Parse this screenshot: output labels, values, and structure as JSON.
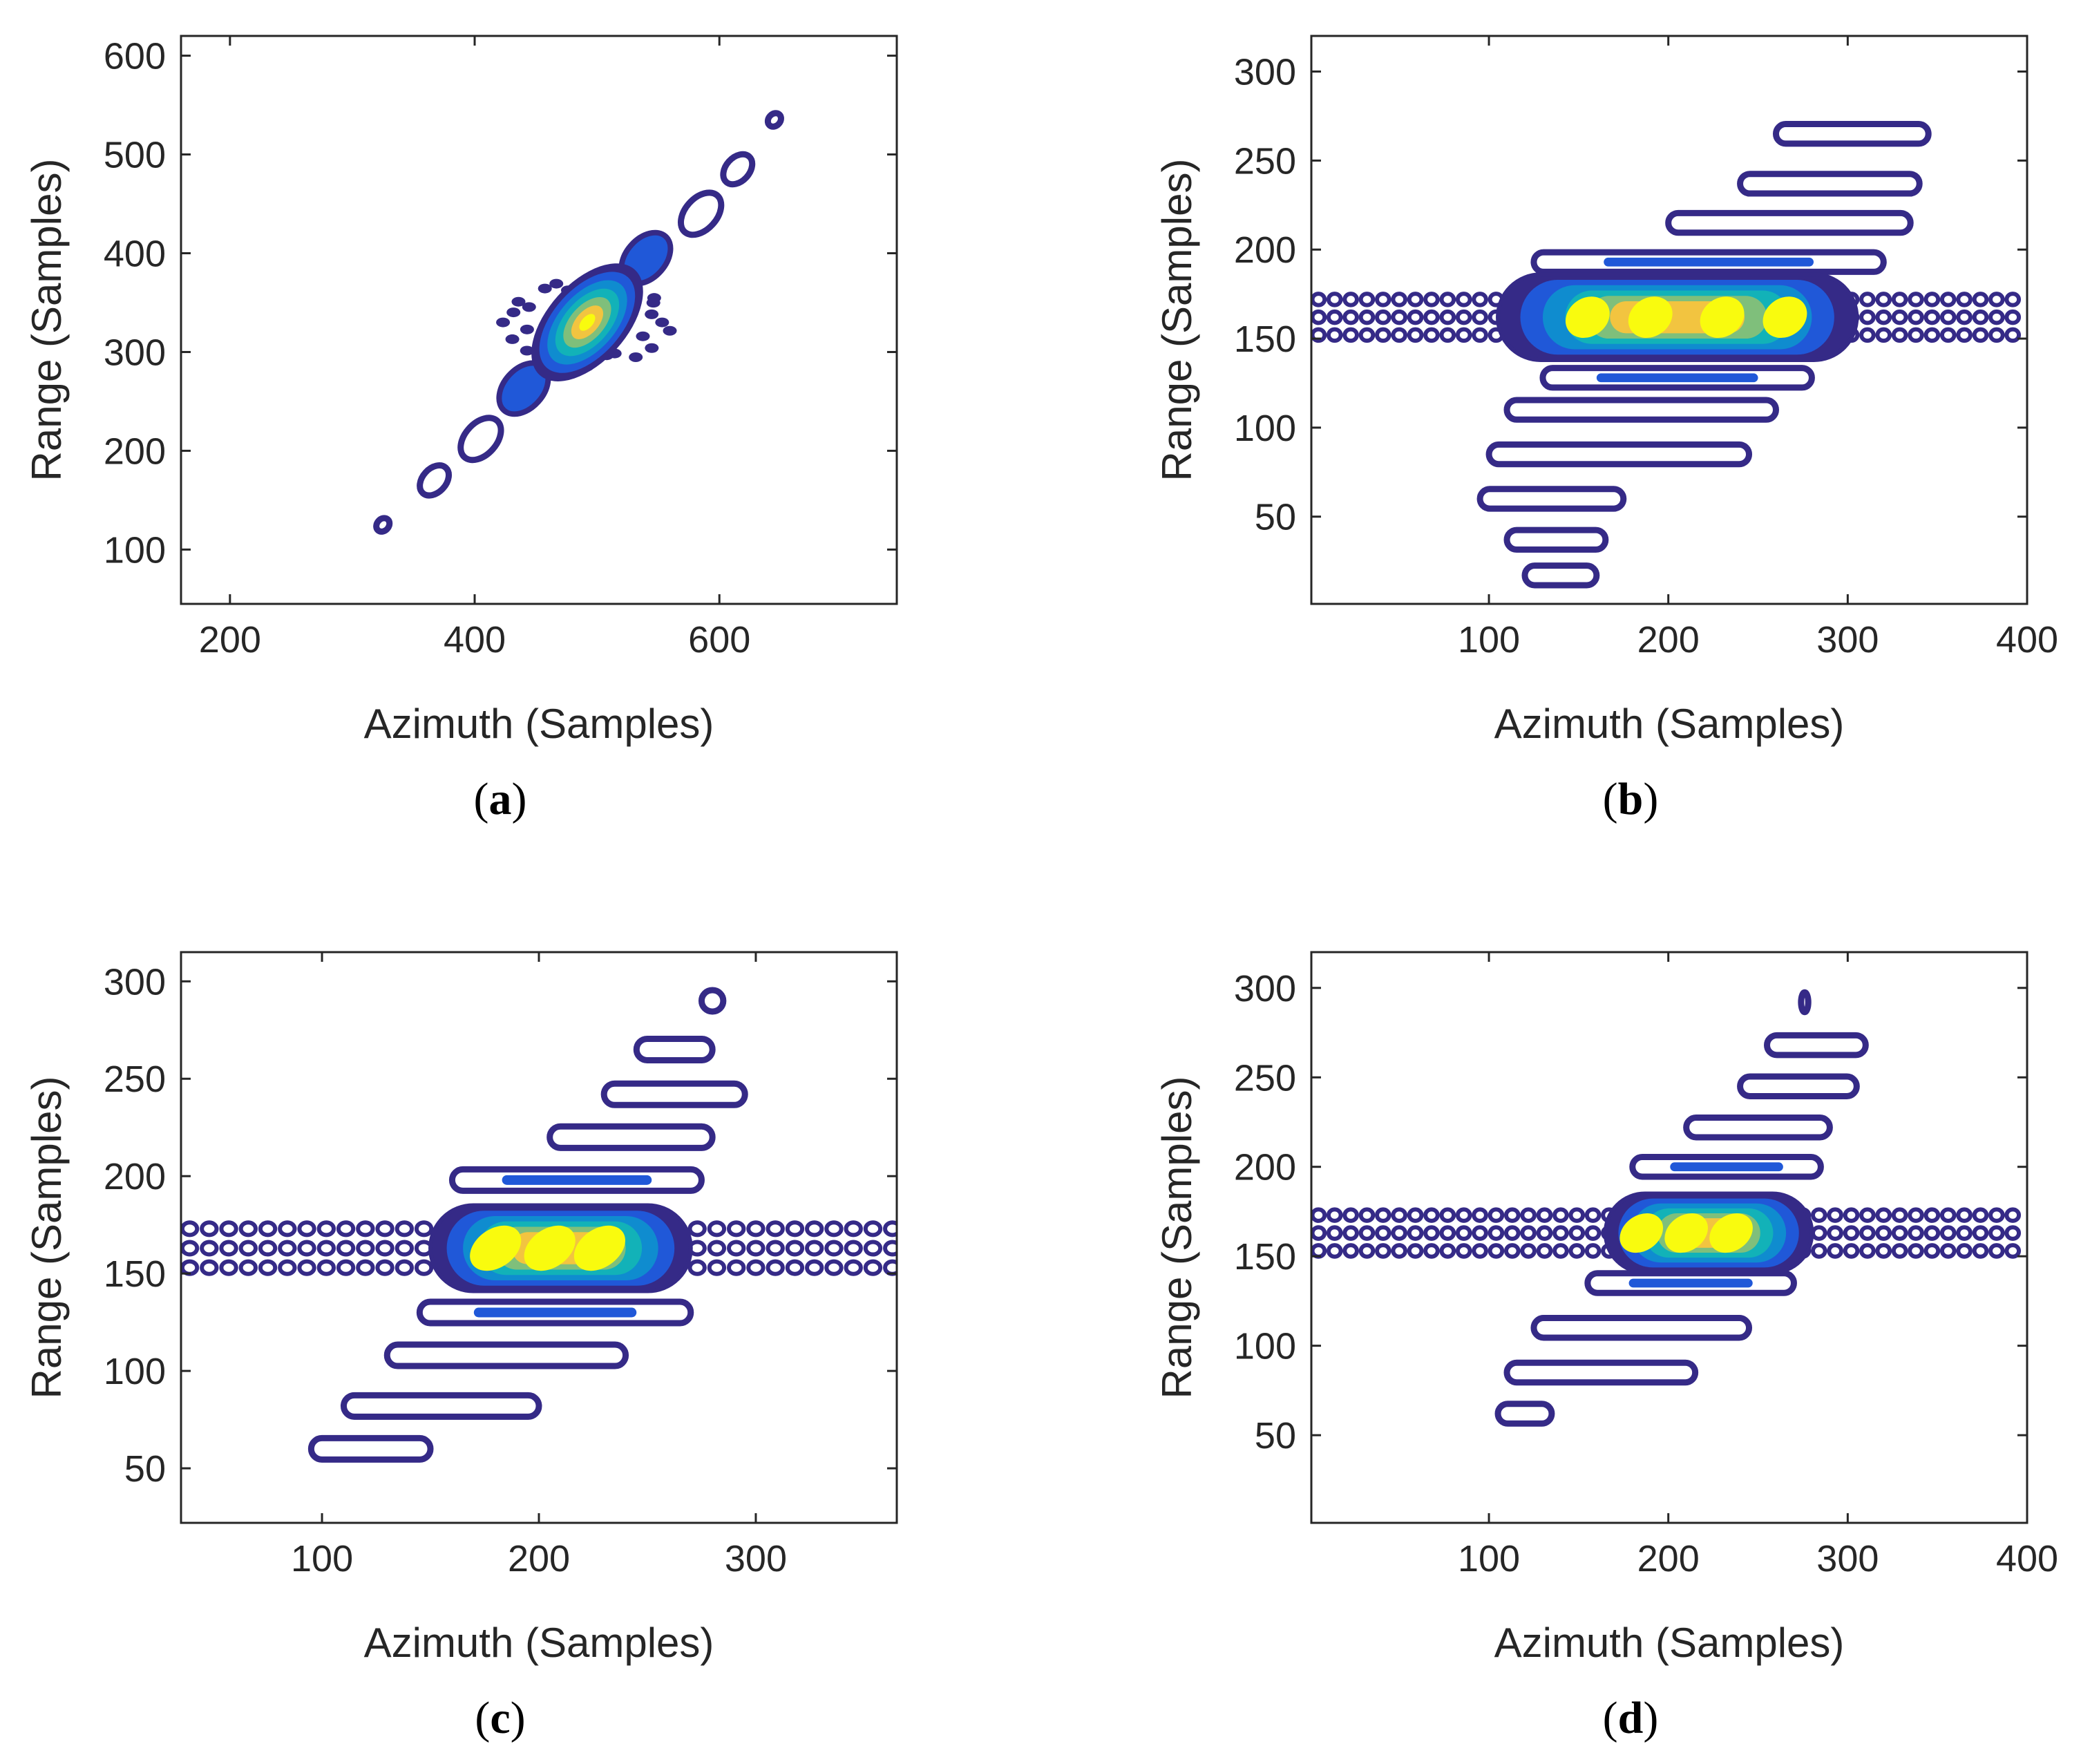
{
  "colors": {
    "outer": "#352a87",
    "mid1": "#2058d8",
    "mid2": "#0f8ccf",
    "mid3": "#12b2b8",
    "mid4": "#7fbf7b",
    "inner": "#f2c440",
    "peak": "#f9fb0e",
    "axis": "#262626"
  },
  "chart_data": [
    {
      "panel": "a",
      "type": "contour",
      "caption": "a",
      "xlabel": "Azimuth (Samples)",
      "ylabel": "Range (Samples)",
      "xlim": [
        160,
        745
      ],
      "ylim": [
        45,
        620
      ],
      "xticks": [
        200,
        400,
        600
      ],
      "yticks": [
        100,
        200,
        300,
        400,
        500,
        600
      ],
      "sidelobes": [
        {
          "x": 325,
          "y": 125,
          "rx": 6,
          "ry": 6
        },
        {
          "x": 367,
          "y": 170,
          "rx": 14,
          "ry": 12
        },
        {
          "x": 405,
          "y": 212,
          "rx": 20,
          "ry": 16
        },
        {
          "x": 585,
          "y": 440,
          "rx": 20,
          "ry": 16
        },
        {
          "x": 615,
          "y": 485,
          "rx": 14,
          "ry": 12
        },
        {
          "x": 645,
          "y": 535,
          "rx": 6,
          "ry": 6
        }
      ],
      "filled_lobes": [
        {
          "x": 440,
          "y": 263,
          "rx": 24,
          "ry": 20
        },
        {
          "x": 540,
          "y": 395,
          "rx": 24,
          "ry": 20
        }
      ],
      "mainlobe": {
        "x": 492,
        "y": 330,
        "rx": 58,
        "ry": 40,
        "angle": -48
      }
    },
    {
      "panel": "b",
      "type": "contour",
      "caption": "b",
      "xlabel": "Azimuth (Samples)",
      "ylabel": "Range (Samples)",
      "xlim": [
        1,
        400
      ],
      "ylim": [
        1,
        320
      ],
      "xticks": [
        100,
        200,
        300,
        400
      ],
      "yticks": [
        50,
        100,
        150,
        200,
        250,
        300
      ],
      "center_range": 162,
      "mainlobe": {
        "x0": 105,
        "x1": 305,
        "ry": 24
      },
      "peaks": [
        155,
        190,
        230,
        265
      ],
      "bands": [
        {
          "y": 265,
          "x0": 260,
          "x1": 345
        },
        {
          "y": 237,
          "x0": 240,
          "x1": 340
        },
        {
          "y": 215,
          "x0": 200,
          "x1": 335
        },
        {
          "y": 193,
          "x0": 125,
          "x1": 320
        },
        {
          "y": 128,
          "x0": 130,
          "x1": 280
        },
        {
          "y": 110,
          "x0": 110,
          "x1": 260
        },
        {
          "y": 85,
          "x0": 100,
          "x1": 245
        },
        {
          "y": 60,
          "x0": 95,
          "x1": 175
        },
        {
          "y": 37,
          "x0": 110,
          "x1": 165
        },
        {
          "y": 17,
          "x0": 120,
          "x1": 160
        }
      ]
    },
    {
      "panel": "c",
      "type": "contour",
      "caption": "c",
      "xlabel": "Azimuth (Samples)",
      "ylabel": "Range (Samples)",
      "xlim": [
        35,
        365
      ],
      "ylim": [
        22,
        315
      ],
      "xticks": [
        100,
        200,
        300
      ],
      "yticks": [
        50,
        100,
        150,
        200,
        250,
        300
      ],
      "center_range": 163,
      "mainlobe": {
        "x0": 150,
        "x1": 270,
        "ry": 22
      },
      "peaks": [
        180,
        205,
        228
      ],
      "bands": [
        {
          "y": 290,
          "x0": 275,
          "x1": 285
        },
        {
          "y": 265,
          "x0": 245,
          "x1": 280
        },
        {
          "y": 242,
          "x0": 230,
          "x1": 295
        },
        {
          "y": 220,
          "x0": 205,
          "x1": 280
        },
        {
          "y": 198,
          "x0": 160,
          "x1": 275
        },
        {
          "y": 130,
          "x0": 145,
          "x1": 270
        },
        {
          "y": 108,
          "x0": 130,
          "x1": 240
        },
        {
          "y": 82,
          "x0": 110,
          "x1": 200
        },
        {
          "y": 60,
          "x0": 95,
          "x1": 150
        }
      ]
    },
    {
      "panel": "d",
      "type": "contour",
      "caption": "d",
      "xlabel": "Azimuth (Samples)",
      "ylabel": "Range (Samples)",
      "xlim": [
        1,
        400
      ],
      "ylim": [
        1,
        320
      ],
      "xticks": [
        100,
        200,
        300,
        400
      ],
      "yticks": [
        50,
        100,
        150,
        200,
        250,
        300
      ],
      "center_range": 163,
      "mainlobe": {
        "x0": 165,
        "x1": 280,
        "ry": 22
      },
      "peaks": [
        185,
        210,
        235
      ],
      "bands": [
        {
          "y": 292,
          "x0": 274,
          "x1": 278
        },
        {
          "y": 268,
          "x0": 255,
          "x1": 310
        },
        {
          "y": 245,
          "x0": 240,
          "x1": 305
        },
        {
          "y": 222,
          "x0": 210,
          "x1": 290
        },
        {
          "y": 200,
          "x0": 180,
          "x1": 285
        },
        {
          "y": 135,
          "x0": 155,
          "x1": 270
        },
        {
          "y": 110,
          "x0": 125,
          "x1": 245
        },
        {
          "y": 85,
          "x0": 110,
          "x1": 215
        },
        {
          "y": 62,
          "x0": 105,
          "x1": 135
        }
      ]
    }
  ]
}
